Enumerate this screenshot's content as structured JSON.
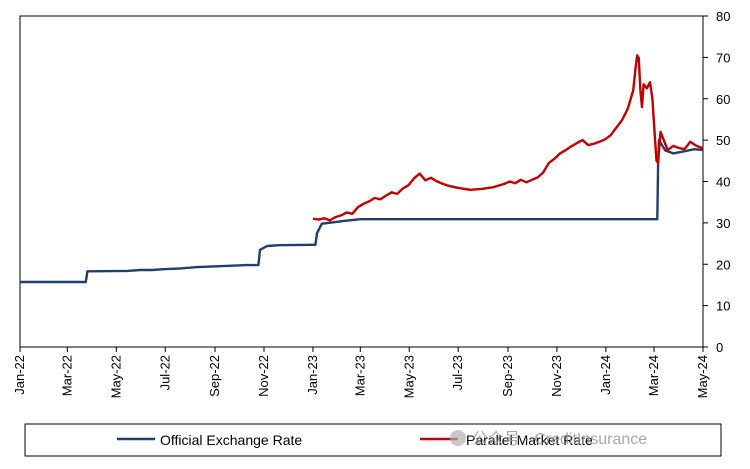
{
  "chart_data": {
    "type": "line",
    "title": "",
    "xlabel": "",
    "ylabel": "",
    "x_ticks": [
      "Jan-22",
      "Mar-22",
      "May-22",
      "Jul-22",
      "Sep-22",
      "Nov-22",
      "Jan-23",
      "Mar-23",
      "May-23",
      "Jul-23",
      "Sep-23",
      "Nov-23",
      "Jan-24",
      "Mar-24",
      "May-24"
    ],
    "y_ticks": [
      "0",
      "10",
      "20",
      "30",
      "40",
      "50",
      "60",
      "70",
      "80"
    ],
    "xlim": [
      "2022-01-01",
      "2024-05-01"
    ],
    "ylim": [
      0,
      80
    ],
    "y_axis_side": "right",
    "grid": false,
    "legend_position": "bottom",
    "series": [
      {
        "name": "Official Exchange Rate",
        "color": "#1f3f6e",
        "points": [
          [
            "2022-01-01",
            15.7
          ],
          [
            "2022-03-24",
            15.7
          ],
          [
            "2022-03-26",
            18.3
          ],
          [
            "2022-05-15",
            18.4
          ],
          [
            "2022-05-31",
            18.6
          ],
          [
            "2022-06-15",
            18.6
          ],
          [
            "2022-06-29",
            18.8
          ],
          [
            "2022-07-20",
            19.0
          ],
          [
            "2022-08-10",
            19.3
          ],
          [
            "2022-09-15",
            19.6
          ],
          [
            "2022-10-10",
            19.8
          ],
          [
            "2022-10-25",
            19.8
          ],
          [
            "2022-10-27",
            23.5
          ],
          [
            "2022-11-05",
            24.4
          ],
          [
            "2022-11-20",
            24.6
          ],
          [
            "2022-12-31",
            24.7
          ],
          [
            "2023-01-04",
            24.7
          ],
          [
            "2023-01-06",
            27.5
          ],
          [
            "2023-01-12",
            29.8
          ],
          [
            "2023-01-20",
            30.0
          ],
          [
            "2023-02-10",
            30.5
          ],
          [
            "2023-03-01",
            30.9
          ],
          [
            "2023-04-01",
            30.9
          ],
          [
            "2023-06-01",
            30.9
          ],
          [
            "2023-08-01",
            30.9
          ],
          [
            "2023-10-01",
            30.9
          ],
          [
            "2023-12-01",
            30.9
          ],
          [
            "2024-01-15",
            30.9
          ],
          [
            "2024-03-05",
            30.9
          ],
          [
            "2024-03-06",
            44.0
          ],
          [
            "2024-03-07",
            50.0
          ],
          [
            "2024-03-15",
            47.5
          ],
          [
            "2024-03-25",
            46.8
          ],
          [
            "2024-04-10",
            47.4
          ],
          [
            "2024-04-20",
            47.8
          ],
          [
            "2024-05-01",
            47.6
          ]
        ]
      },
      {
        "name": "Parallel Market Rate",
        "color": "#c00000",
        "points": [
          [
            "2023-01-01",
            31.0
          ],
          [
            "2023-01-08",
            30.8
          ],
          [
            "2023-01-15",
            31.1
          ],
          [
            "2023-01-22",
            30.6
          ],
          [
            "2023-01-29",
            31.4
          ],
          [
            "2023-02-05",
            31.8
          ],
          [
            "2023-02-12",
            32.5
          ],
          [
            "2023-02-19",
            32.2
          ],
          [
            "2023-02-26",
            33.8
          ],
          [
            "2023-03-05",
            34.6
          ],
          [
            "2023-03-12",
            35.2
          ],
          [
            "2023-03-19",
            36.0
          ],
          [
            "2023-03-26",
            35.7
          ],
          [
            "2023-04-02",
            36.6
          ],
          [
            "2023-04-09",
            37.4
          ],
          [
            "2023-04-16",
            37.0
          ],
          [
            "2023-04-23",
            38.3
          ],
          [
            "2023-04-30",
            39.1
          ],
          [
            "2023-05-07",
            40.8
          ],
          [
            "2023-05-14",
            41.9
          ],
          [
            "2023-05-21",
            40.3
          ],
          [
            "2023-05-28",
            40.9
          ],
          [
            "2023-06-04",
            40.1
          ],
          [
            "2023-06-11",
            39.5
          ],
          [
            "2023-06-18",
            39.0
          ],
          [
            "2023-06-25",
            38.7
          ],
          [
            "2023-07-02",
            38.4
          ],
          [
            "2023-07-16",
            38.0
          ],
          [
            "2023-07-30",
            38.2
          ],
          [
            "2023-08-13",
            38.6
          ],
          [
            "2023-08-27",
            39.4
          ],
          [
            "2023-09-03",
            40.0
          ],
          [
            "2023-09-10",
            39.6
          ],
          [
            "2023-09-17",
            40.4
          ],
          [
            "2023-09-24",
            39.8
          ],
          [
            "2023-10-01",
            40.4
          ],
          [
            "2023-10-08",
            41.0
          ],
          [
            "2023-10-15",
            42.2
          ],
          [
            "2023-10-22",
            44.5
          ],
          [
            "2023-10-29",
            45.5
          ],
          [
            "2023-11-05",
            46.8
          ],
          [
            "2023-11-12",
            47.6
          ],
          [
            "2023-11-19",
            48.5
          ],
          [
            "2023-11-26",
            49.3
          ],
          [
            "2023-12-03",
            50.0
          ],
          [
            "2023-12-10",
            48.8
          ],
          [
            "2023-12-17",
            49.1
          ],
          [
            "2023-12-24",
            49.6
          ],
          [
            "2023-12-31",
            50.2
          ],
          [
            "2024-01-07",
            51.2
          ],
          [
            "2024-01-14",
            53.0
          ],
          [
            "2024-01-21",
            54.8
          ],
          [
            "2024-01-28",
            57.5
          ],
          [
            "2024-02-04",
            62.0
          ],
          [
            "2024-02-07",
            67.5
          ],
          [
            "2024-02-09",
            70.5
          ],
          [
            "2024-02-11",
            69.8
          ],
          [
            "2024-02-13",
            62.0
          ],
          [
            "2024-02-15",
            58.0
          ],
          [
            "2024-02-17",
            63.5
          ],
          [
            "2024-02-21",
            62.5
          ],
          [
            "2024-02-25",
            64.0
          ],
          [
            "2024-02-28",
            60.0
          ],
          [
            "2024-03-02",
            51.0
          ],
          [
            "2024-03-04",
            45.0
          ],
          [
            "2024-03-06",
            44.5
          ],
          [
            "2024-03-09",
            52.0
          ],
          [
            "2024-03-13",
            50.0
          ],
          [
            "2024-03-18",
            47.6
          ],
          [
            "2024-03-25",
            48.6
          ],
          [
            "2024-04-01",
            48.1
          ],
          [
            "2024-04-08",
            47.8
          ],
          [
            "2024-04-15",
            49.6
          ],
          [
            "2024-04-22",
            48.7
          ],
          [
            "2024-05-01",
            48.0
          ]
        ]
      }
    ]
  },
  "watermark": {
    "text": "公众号 · CreditInsurance"
  }
}
